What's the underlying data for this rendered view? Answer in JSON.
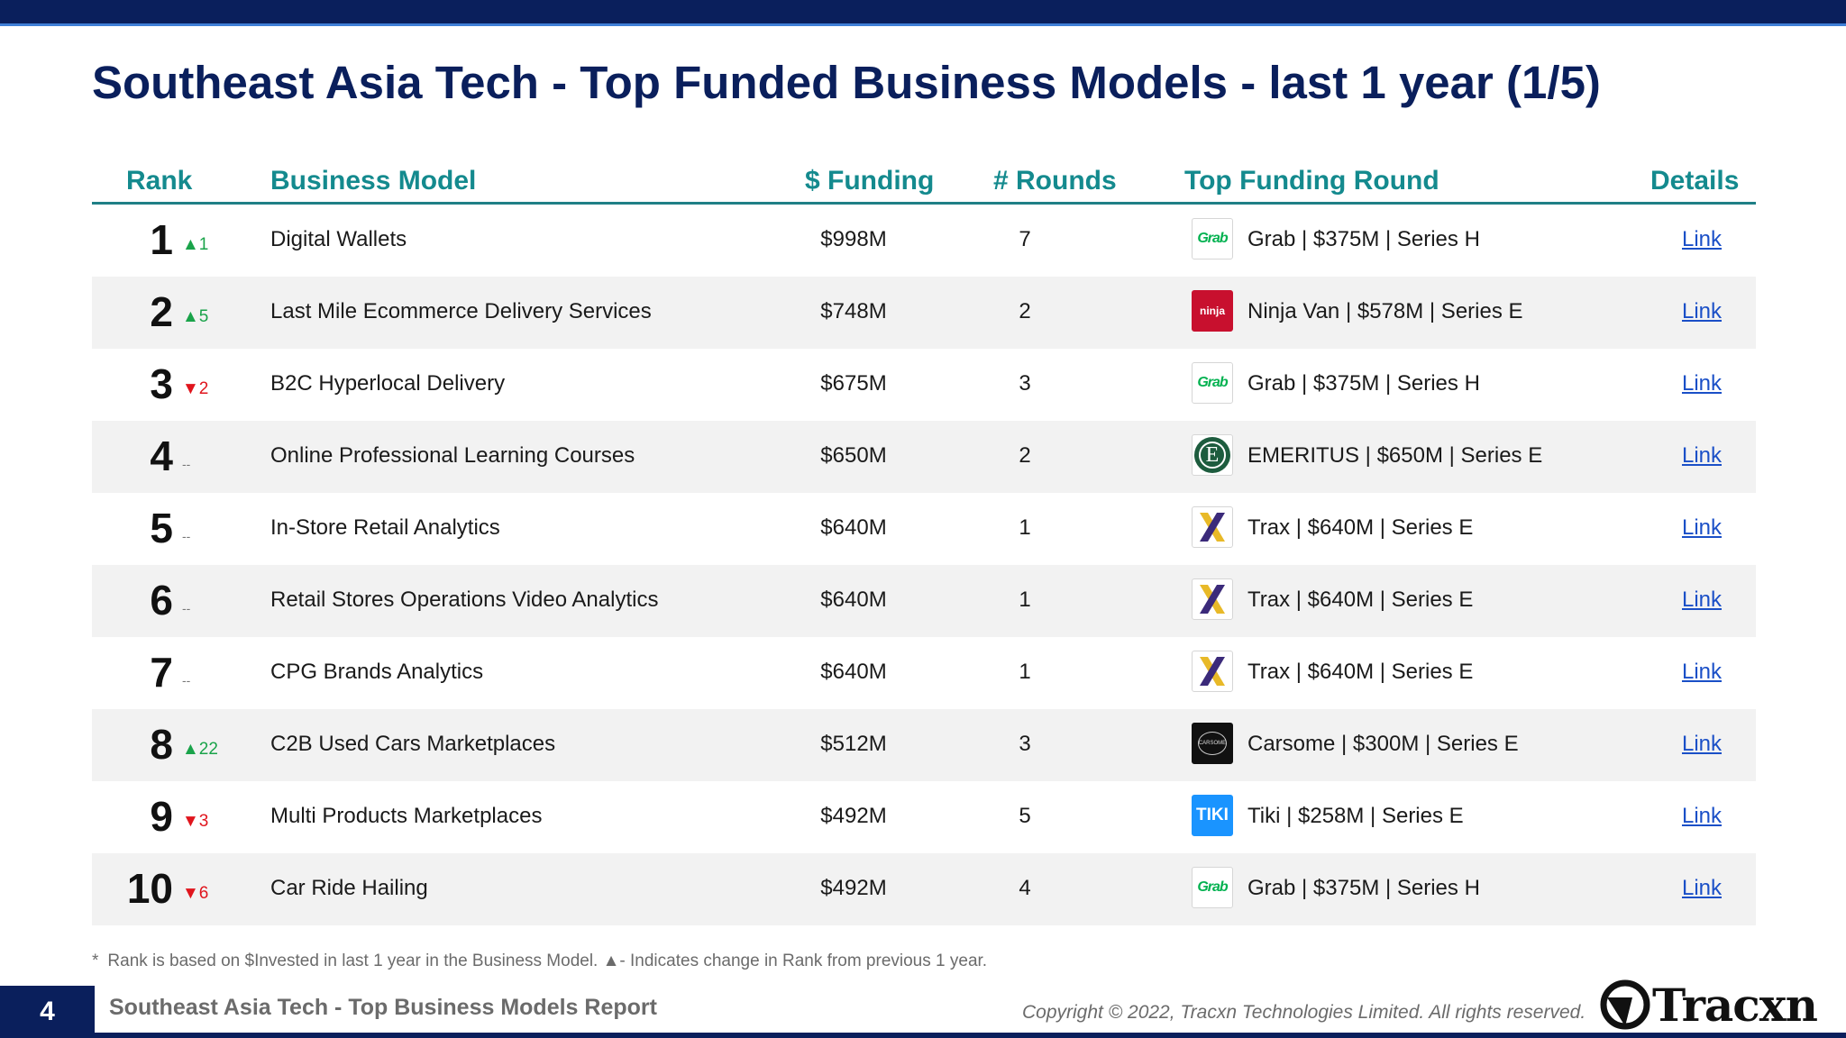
{
  "title": "Southeast Asia Tech - Top Funded Business Models - last 1 year (1/5)",
  "columns": {
    "rank": "Rank",
    "business_model": "Business Model",
    "funding": "$ Funding",
    "rounds": "# Rounds",
    "top_round": "Top Funding Round",
    "details": "Details"
  },
  "rows": [
    {
      "rank": "1",
      "change_dir": "up",
      "change": "▲1",
      "model": "Digital Wallets",
      "funding": "$998M",
      "rounds": "7",
      "logo": "grab-logo",
      "logo_text": "Grab",
      "top_round": "Grab | $375M | Series H",
      "details": "Link"
    },
    {
      "rank": "2",
      "change_dir": "up",
      "change": "▲5",
      "model": "Last Mile Ecommerce Delivery Services",
      "funding": "$748M",
      "rounds": "2",
      "logo": "ninja-van-logo",
      "logo_text": "ninja",
      "top_round": "Ninja Van | $578M | Series E",
      "details": "Link"
    },
    {
      "rank": "3",
      "change_dir": "down",
      "change": "▼2",
      "model": "B2C Hyperlocal Delivery",
      "funding": "$675M",
      "rounds": "3",
      "logo": "grab-logo",
      "logo_text": "Grab",
      "top_round": "Grab | $375M | Series H",
      "details": "Link"
    },
    {
      "rank": "4",
      "change_dir": "same",
      "change": "--",
      "model": "Online Professional Learning Courses",
      "funding": "$650M",
      "rounds": "2",
      "logo": "emeritus-logo",
      "logo_text": "E",
      "top_round": "EMERITUS | $650M | Series E",
      "details": "Link"
    },
    {
      "rank": "5",
      "change_dir": "same",
      "change": "--",
      "model": "In-Store Retail Analytics",
      "funding": "$640M",
      "rounds": "1",
      "logo": "trax-logo",
      "logo_text": "",
      "top_round": "Trax | $640M | Series E",
      "details": "Link"
    },
    {
      "rank": "6",
      "change_dir": "same",
      "change": "--",
      "model": "Retail Stores Operations Video Analytics",
      "funding": "$640M",
      "rounds": "1",
      "logo": "trax-logo",
      "logo_text": "",
      "top_round": "Trax | $640M | Series E",
      "details": "Link"
    },
    {
      "rank": "7",
      "change_dir": "same",
      "change": "--",
      "model": "CPG Brands Analytics",
      "funding": "$640M",
      "rounds": "1",
      "logo": "trax-logo",
      "logo_text": "",
      "top_round": "Trax | $640M | Series E",
      "details": "Link"
    },
    {
      "rank": "8",
      "change_dir": "up",
      "change": "▲22",
      "model": "C2B Used Cars Marketplaces",
      "funding": "$512M",
      "rounds": "3",
      "logo": "carsome-logo",
      "logo_text": "CARSOME",
      "top_round": "Carsome | $300M | Series E",
      "details": "Link"
    },
    {
      "rank": "9",
      "change_dir": "down",
      "change": "▼3",
      "model": "Multi Products Marketplaces",
      "funding": "$492M",
      "rounds": "5",
      "logo": "tiki-logo",
      "logo_text": "TIKI",
      "top_round": "Tiki | $258M | Series E",
      "details": "Link"
    },
    {
      "rank": "10",
      "change_dir": "down",
      "change": "▼6",
      "model": "Car Ride Hailing",
      "funding": "$492M",
      "rounds": "4",
      "logo": "grab-logo",
      "logo_text": "Grab",
      "top_round": "Grab | $375M | Series H",
      "details": "Link"
    }
  ],
  "footnote": {
    "star": "*",
    "text": "Rank is based on $Invested in last 1 year in the Business Model.  ▲- Indicates change in Rank from previous 1 year."
  },
  "footer": {
    "page_number": "4",
    "report_title": "Southeast Asia Tech - Top Business Models Report",
    "copyright": "Copyright © 2022, Tracxn Technologies Limited. All rights reserved.",
    "brand": "Tracxn"
  },
  "colors": {
    "navy": "#0a1f5c",
    "teal_header": "#148a8e",
    "up": "#1aa34a",
    "down": "#e0151d",
    "link": "#1a4fc7"
  }
}
